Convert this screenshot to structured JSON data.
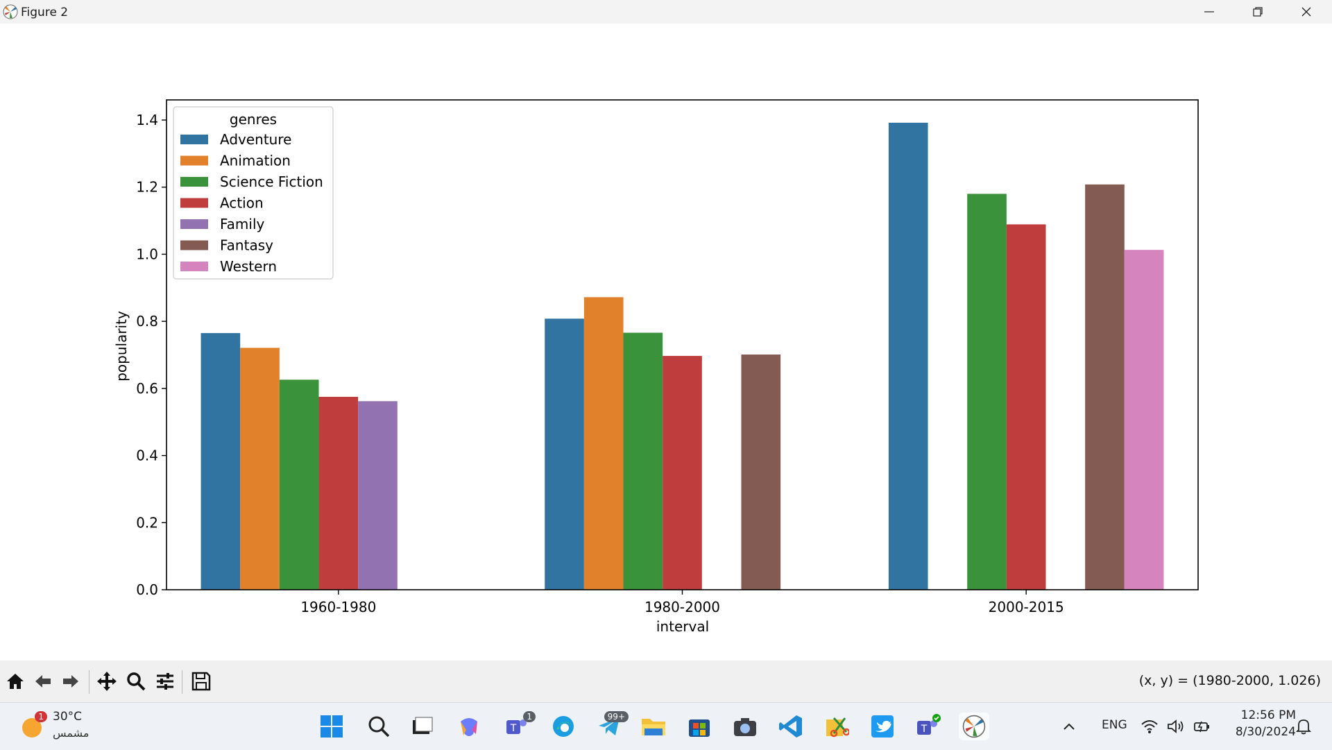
{
  "window": {
    "title": "Figure 2"
  },
  "chart_data": {
    "type": "bar",
    "categories": [
      "1960-1980",
      "1980-2000",
      "2000-2015"
    ],
    "xlabel": "interval",
    "ylabel": "popularity",
    "ylim": [
      0,
      1.46
    ],
    "yticks": [
      "0.0",
      "0.2",
      "0.4",
      "0.6",
      "0.8",
      "1.0",
      "1.2",
      "1.4"
    ],
    "legend_title": "genres",
    "legend_position": "upper-left",
    "series": [
      {
        "name": "Adventure",
        "color": "#3274a1",
        "values": [
          0.765,
          0.808,
          1.392
        ]
      },
      {
        "name": "Animation",
        "color": "#e1812c",
        "values": [
          0.721,
          0.872,
          null
        ]
      },
      {
        "name": "Science Fiction",
        "color": "#3a923a",
        "values": [
          0.626,
          0.766,
          1.18
        ]
      },
      {
        "name": "Action",
        "color": "#c03d3e",
        "values": [
          0.575,
          0.697,
          1.089
        ]
      },
      {
        "name": "Family",
        "color": "#9372b2",
        "values": [
          0.562,
          null,
          null
        ]
      },
      {
        "name": "Fantasy",
        "color": "#845b53",
        "values": [
          null,
          0.701,
          1.208
        ]
      },
      {
        "name": "Western",
        "color": "#d684bd",
        "values": [
          null,
          null,
          1.013
        ]
      }
    ]
  },
  "toolbar": {
    "coord_readout": "(x, y) = (1980-2000, 1.026)",
    "icons": [
      "home-icon",
      "back-icon",
      "forward-icon",
      "pan-icon",
      "zoom-icon",
      "configure-icon",
      "save-icon"
    ]
  },
  "taskbar": {
    "weather_temp": "30°C",
    "weather_desc": "مشمس",
    "weather_badge": "1",
    "teams_badge": "1",
    "telegram_badge": "99+",
    "language": "ENG",
    "time": "12:56 PM",
    "date": "8/30/2024"
  }
}
